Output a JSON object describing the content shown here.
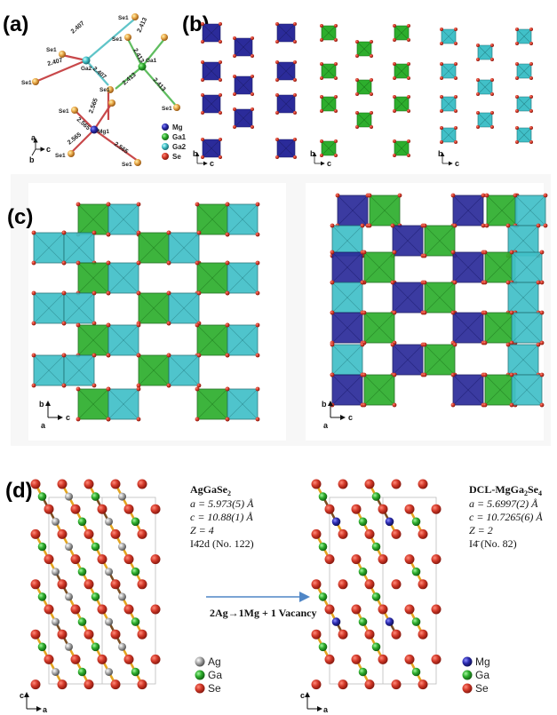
{
  "panels": {
    "a": {
      "label": "(a)",
      "bond_lengths": [
        "2.407",
        "2.407",
        "2.407",
        "2.413",
        "2.413",
        "2.413",
        "2.413",
        "2.565",
        "2.565",
        "2.565",
        "2.565"
      ],
      "atom_labels": [
        "Se1",
        "Se1",
        "Ga2",
        "Se1",
        "Se1",
        "Ga1",
        "Se1",
        "Se1",
        "Se1",
        "Mg1",
        "Se1",
        "Se1"
      ],
      "legend": [
        "Mg",
        "Ga1",
        "Ga2",
        "Se"
      ],
      "axes": [
        "a",
        "c",
        "b"
      ]
    },
    "b": {
      "label": "(b)",
      "axes": [
        "b",
        "c"
      ]
    },
    "c": {
      "label": "(c)",
      "axes": [
        "b",
        "c",
        "a"
      ]
    },
    "d": {
      "label": "(d)",
      "left": {
        "name": "AgGaSe",
        "name_sub": "2",
        "a": "a = 5.973(5) Å",
        "c": "c = 10.88(1) Å",
        "z": "Z = 4",
        "sg": "I4̄2d (No. 122)",
        "legend": [
          "Ag",
          "Ga",
          "Se"
        ]
      },
      "right": {
        "name_parts": [
          "DCL-MgGa",
          "2",
          "Se",
          "4"
        ],
        "a": "a = 5.6997(2) Å",
        "c": "c = 10.7265(6) Å",
        "z": "Z = 2",
        "sg": "I4̄ (No. 82)",
        "legend": [
          "Mg",
          "Ga",
          "Se"
        ]
      },
      "arrow_text": "2Ag→1Mg + 1 Vacancy",
      "axes": [
        "c",
        "a"
      ]
    }
  },
  "colors": {
    "mg": "#2b2b9a",
    "ga": "#2dae2d",
    "ga2": "#41c0c8",
    "se": "#cc2b1e",
    "ag": "#a9a9a9",
    "bond_gold": "#e3a520",
    "bond_brown": "#7a4e22",
    "arrow": "#4f86c6"
  }
}
